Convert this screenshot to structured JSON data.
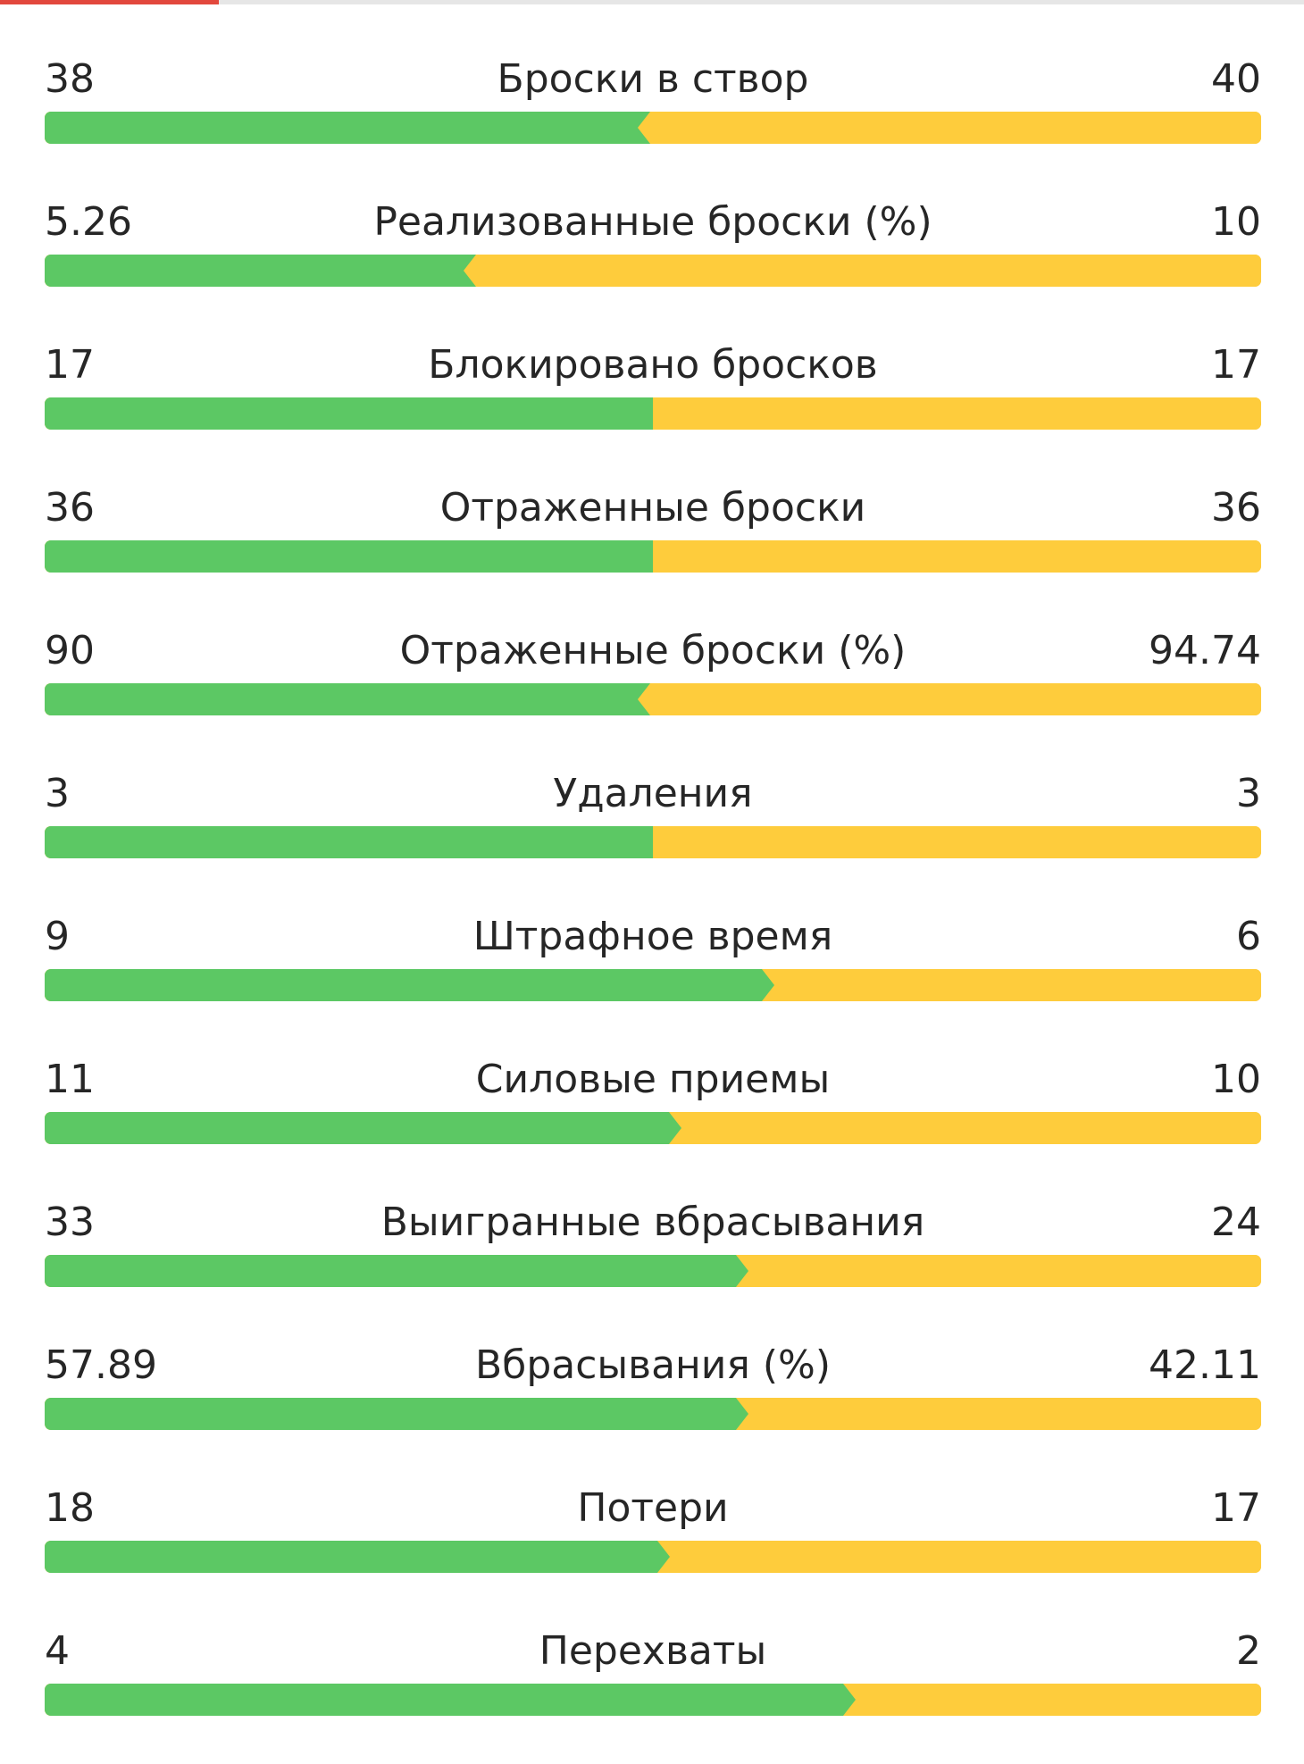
{
  "colors": {
    "home": "#5cc864",
    "away": "#fecc3c",
    "accent": "#e2483d"
  },
  "stats": [
    {
      "label": "Броски в створ",
      "home": "38",
      "away": "40",
      "home_share": 0.4872
    },
    {
      "label": "Реализованные броски (%)",
      "home": "5.26",
      "away": "10",
      "home_share": 0.3446
    },
    {
      "label": "Блокировано бросков",
      "home": "17",
      "away": "17",
      "home_share": 0.5
    },
    {
      "label": "Отраженные броски",
      "home": "36",
      "away": "36",
      "home_share": 0.5
    },
    {
      "label": "Отраженные броски (%)",
      "home": "90",
      "away": "94.74",
      "home_share": 0.4872
    },
    {
      "label": "Удаления",
      "home": "3",
      "away": "3",
      "home_share": 0.5
    },
    {
      "label": "Штрафное время",
      "home": "9",
      "away": "6",
      "home_share": 0.6
    },
    {
      "label": "Силовые приемы",
      "home": "11",
      "away": "10",
      "home_share": 0.5238
    },
    {
      "label": "Выигранные вбрасывания",
      "home": "33",
      "away": "24",
      "home_share": 0.5789
    },
    {
      "label": "Вбрасывания (%)",
      "home": "57.89",
      "away": "42.11",
      "home_share": 0.5789
    },
    {
      "label": "Потери",
      "home": "18",
      "away": "17",
      "home_share": 0.5143
    },
    {
      "label": "Перехваты",
      "home": "4",
      "away": "2",
      "home_share": 0.6667
    }
  ]
}
